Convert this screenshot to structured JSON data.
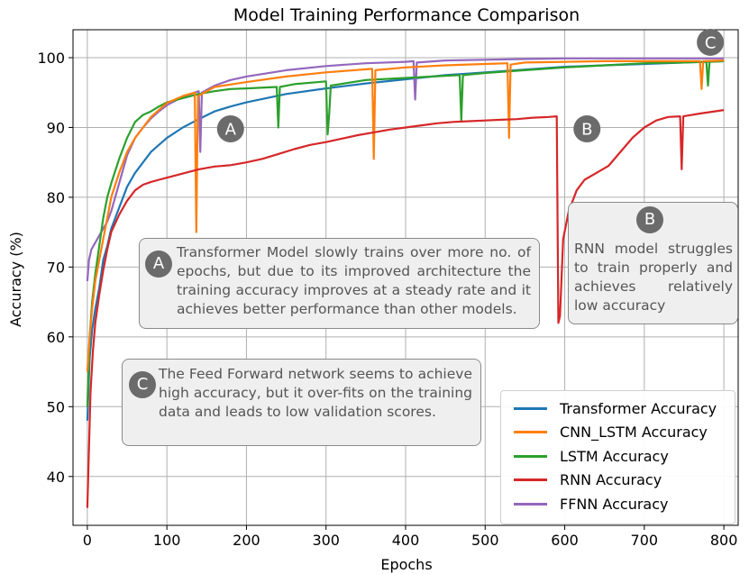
{
  "chart_data": {
    "type": "line",
    "title": "Model Training Performance Comparison",
    "xlabel": "Epochs",
    "ylabel": "Accuracy (%)",
    "xlim": [
      -18,
      818
    ],
    "ylim": [
      33,
      104
    ],
    "xticks": [
      0,
      100,
      200,
      300,
      400,
      500,
      600,
      700,
      800
    ],
    "yticks": [
      40,
      50,
      60,
      70,
      80,
      90,
      100
    ],
    "grid": true,
    "legend_position": "bottom-right",
    "series": [
      {
        "name": "Transformer Accuracy",
        "color": "#1f77b4",
        "points": [
          [
            0,
            48
          ],
          [
            3,
            57
          ],
          [
            6,
            61
          ],
          [
            10,
            64
          ],
          [
            15,
            67
          ],
          [
            20,
            71
          ],
          [
            25,
            73
          ],
          [
            30,
            75.5
          ],
          [
            40,
            78.5
          ],
          [
            50,
            81.5
          ],
          [
            60,
            83.5
          ],
          [
            70,
            85
          ],
          [
            80,
            86.5
          ],
          [
            90,
            87.5
          ],
          [
            100,
            88.5
          ],
          [
            120,
            90
          ],
          [
            140,
            91.2
          ],
          [
            160,
            92.3
          ],
          [
            180,
            93
          ],
          [
            200,
            93.6
          ],
          [
            250,
            94.8
          ],
          [
            300,
            95.6
          ],
          [
            350,
            96.3
          ],
          [
            400,
            96.9
          ],
          [
            450,
            97.5
          ],
          [
            500,
            97.9
          ],
          [
            550,
            98.3
          ],
          [
            600,
            98.7
          ],
          [
            650,
            98.9
          ],
          [
            700,
            99.1
          ],
          [
            750,
            99.3
          ],
          [
            800,
            99.5
          ]
        ]
      },
      {
        "name": "CNN_LSTM Accuracy",
        "color": "#ff7f0e",
        "points": [
          [
            0,
            55
          ],
          [
            3,
            60
          ],
          [
            6,
            64
          ],
          [
            10,
            68
          ],
          [
            15,
            71
          ],
          [
            20,
            74
          ],
          [
            25,
            77
          ],
          [
            30,
            80
          ],
          [
            40,
            83.5
          ],
          [
            50,
            86.5
          ],
          [
            60,
            88.5
          ],
          [
            70,
            90
          ],
          [
            80,
            91.5
          ],
          [
            90,
            92.5
          ],
          [
            100,
            93.5
          ],
          [
            120,
            94.5
          ],
          [
            135,
            95
          ],
          [
            137,
            75
          ],
          [
            139,
            94.5
          ],
          [
            160,
            95.8
          ],
          [
            200,
            96.5
          ],
          [
            250,
            97.3
          ],
          [
            300,
            97.9
          ],
          [
            358,
            98.4
          ],
          [
            360,
            85.5
          ],
          [
            362,
            98.2
          ],
          [
            400,
            98.6
          ],
          [
            450,
            98.9
          ],
          [
            500,
            99.1
          ],
          [
            528,
            99.2
          ],
          [
            530,
            88.5
          ],
          [
            532,
            99
          ],
          [
            550,
            99.3
          ],
          [
            600,
            99.4
          ],
          [
            650,
            99.5
          ],
          [
            700,
            99.5
          ],
          [
            770,
            99.5
          ],
          [
            772,
            95.5
          ],
          [
            774,
            99.5
          ],
          [
            800,
            99.6
          ]
        ]
      },
      {
        "name": "LSTM Accuracy",
        "color": "#2ca02c",
        "points": [
          [
            0,
            50
          ],
          [
            3,
            60
          ],
          [
            6,
            65
          ],
          [
            10,
            69
          ],
          [
            15,
            73
          ],
          [
            20,
            77
          ],
          [
            25,
            80
          ],
          [
            30,
            82
          ],
          [
            40,
            85.5
          ],
          [
            50,
            88.5
          ],
          [
            60,
            90.8
          ],
          [
            70,
            91.8
          ],
          [
            80,
            92.3
          ],
          [
            90,
            93
          ],
          [
            100,
            93.6
          ],
          [
            120,
            94.2
          ],
          [
            140,
            94.8
          ],
          [
            160,
            95.2
          ],
          [
            180,
            95.5
          ],
          [
            200,
            95.6
          ],
          [
            238,
            95.8
          ],
          [
            240,
            90
          ],
          [
            242,
            95.8
          ],
          [
            260,
            96.2
          ],
          [
            300,
            96.6
          ],
          [
            302,
            89
          ],
          [
            304,
            92
          ],
          [
            306,
            96
          ],
          [
            350,
            96.8
          ],
          [
            400,
            97.1
          ],
          [
            450,
            97.4
          ],
          [
            468,
            97.5
          ],
          [
            470,
            91
          ],
          [
            472,
            97.5
          ],
          [
            500,
            97.8
          ],
          [
            550,
            98.2
          ],
          [
            600,
            98.6
          ],
          [
            650,
            98.9
          ],
          [
            700,
            99.2
          ],
          [
            750,
            99.3
          ],
          [
            778,
            99.4
          ],
          [
            780,
            96
          ],
          [
            782,
            99.4
          ],
          [
            800,
            99.5
          ]
        ]
      },
      {
        "name": "RNN Accuracy",
        "color": "#d62728",
        "points": [
          [
            0,
            35.5
          ],
          [
            2,
            44
          ],
          [
            4,
            52
          ],
          [
            7,
            58
          ],
          [
            10,
            62
          ],
          [
            15,
            66
          ],
          [
            20,
            69.5
          ],
          [
            25,
            72.5
          ],
          [
            30,
            75
          ],
          [
            40,
            77.5
          ],
          [
            50,
            79.5
          ],
          [
            60,
            81
          ],
          [
            70,
            81.8
          ],
          [
            80,
            82.2
          ],
          [
            90,
            82.5
          ],
          [
            100,
            82.8
          ],
          [
            120,
            83.4
          ],
          [
            140,
            84
          ],
          [
            160,
            84.4
          ],
          [
            180,
            84.6
          ],
          [
            200,
            85
          ],
          [
            220,
            85.5
          ],
          [
            240,
            86.2
          ],
          [
            260,
            86.9
          ],
          [
            280,
            87.5
          ],
          [
            300,
            87.9
          ],
          [
            320,
            88.4
          ],
          [
            340,
            88.9
          ],
          [
            360,
            89.3
          ],
          [
            380,
            89.7
          ],
          [
            400,
            90
          ],
          [
            420,
            90.3
          ],
          [
            440,
            90.6
          ],
          [
            460,
            90.8
          ],
          [
            480,
            90.9
          ],
          [
            500,
            91
          ],
          [
            520,
            91.1
          ],
          [
            540,
            91.2
          ],
          [
            560,
            91.4
          ],
          [
            580,
            91.5
          ],
          [
            590,
            91.6
          ],
          [
            592,
            62
          ],
          [
            594,
            63
          ],
          [
            598,
            74
          ],
          [
            605,
            78
          ],
          [
            615,
            81
          ],
          [
            625,
            82.5
          ],
          [
            640,
            83.5
          ],
          [
            655,
            84.5
          ],
          [
            670,
            86.5
          ],
          [
            685,
            88.5
          ],
          [
            700,
            90
          ],
          [
            715,
            91
          ],
          [
            730,
            91.5
          ],
          [
            745,
            91.6
          ],
          [
            747,
            84
          ],
          [
            749,
            91.6
          ],
          [
            770,
            92
          ],
          [
            800,
            92.5
          ]
        ]
      },
      {
        "name": "FFNN Accuracy",
        "color": "#9467bd",
        "points": [
          [
            0,
            68
          ],
          [
            2,
            71
          ],
          [
            5,
            72.5
          ],
          [
            10,
            73.5
          ],
          [
            15,
            74.5
          ],
          [
            20,
            75.5
          ],
          [
            25,
            76.5
          ],
          [
            30,
            78
          ],
          [
            40,
            82
          ],
          [
            50,
            86
          ],
          [
            60,
            88.5
          ],
          [
            70,
            90
          ],
          [
            80,
            91.3
          ],
          [
            90,
            92.3
          ],
          [
            100,
            93.2
          ],
          [
            120,
            94.4
          ],
          [
            140,
            95.2
          ],
          [
            142,
            86.5
          ],
          [
            144,
            95
          ],
          [
            160,
            96
          ],
          [
            180,
            96.8
          ],
          [
            200,
            97.3
          ],
          [
            250,
            98.2
          ],
          [
            300,
            98.8
          ],
          [
            350,
            99.2
          ],
          [
            400,
            99.4
          ],
          [
            410,
            99.5
          ],
          [
            412,
            94
          ],
          [
            414,
            99.3
          ],
          [
            450,
            99.6
          ],
          [
            500,
            99.7
          ],
          [
            550,
            99.8
          ],
          [
            600,
            99.9
          ],
          [
            650,
            99.9
          ],
          [
            700,
            99.9
          ],
          [
            750,
            99.9
          ],
          [
            800,
            99.9
          ]
        ]
      }
    ],
    "annotations": [
      {
        "marker": "A",
        "x": 180,
        "y": 89.8
      },
      {
        "marker": "B",
        "x": 628,
        "y": 89.8
      },
      {
        "marker": "C",
        "x": 783,
        "y": 102.2
      }
    ]
  },
  "notes": {
    "a": {
      "badge": "A",
      "text": "Transformer Model slowly trains over more no. of epochs, but due to its improved architecture the training accuracy improves at a steady rate and it achieves better performance than other models."
    },
    "b": {
      "badge": "B",
      "text": "RNN model struggles to train properly and achieves relatively low accuracy"
    },
    "c": {
      "badge": "C",
      "text": "The Feed Forward network seems to achieve high accuracy, but it over-fits on the training data and leads to low validation scores."
    }
  },
  "legend": {
    "entries": [
      {
        "label": "Transformer Accuracy",
        "color": "#1f77b4"
      },
      {
        "label": "CNN_LSTM Accuracy",
        "color": "#ff7f0e"
      },
      {
        "label": "LSTM Accuracy",
        "color": "#2ca02c"
      },
      {
        "label": "RNN Accuracy",
        "color": "#d62728"
      },
      {
        "label": "FFNN Accuracy",
        "color": "#9467bd"
      }
    ]
  }
}
